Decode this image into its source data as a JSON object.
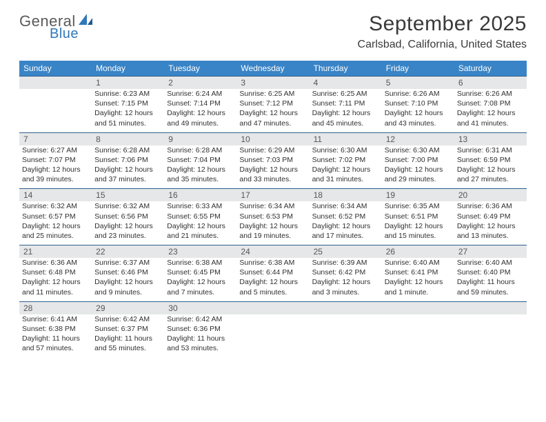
{
  "logo": {
    "word1": "General",
    "word2": "Blue"
  },
  "title": "September 2025",
  "location": "Carlsbad, California, United States",
  "colors": {
    "header_bg": "#3984c6",
    "header_text": "#ffffff",
    "daynum_bg": "#e6e7e8",
    "daynum_border": "#2f5f8f",
    "body_text": "#2f2f2f",
    "logo_gray": "#5a5a5a",
    "logo_blue": "#2f78b9"
  },
  "day_headers": [
    "Sunday",
    "Monday",
    "Tuesday",
    "Wednesday",
    "Thursday",
    "Friday",
    "Saturday"
  ],
  "weeks": [
    [
      null,
      {
        "n": "1",
        "sr": "Sunrise: 6:23 AM",
        "ss": "Sunset: 7:15 PM",
        "d1": "Daylight: 12 hours",
        "d2": "and 51 minutes."
      },
      {
        "n": "2",
        "sr": "Sunrise: 6:24 AM",
        "ss": "Sunset: 7:14 PM",
        "d1": "Daylight: 12 hours",
        "d2": "and 49 minutes."
      },
      {
        "n": "3",
        "sr": "Sunrise: 6:25 AM",
        "ss": "Sunset: 7:12 PM",
        "d1": "Daylight: 12 hours",
        "d2": "and 47 minutes."
      },
      {
        "n": "4",
        "sr": "Sunrise: 6:25 AM",
        "ss": "Sunset: 7:11 PM",
        "d1": "Daylight: 12 hours",
        "d2": "and 45 minutes."
      },
      {
        "n": "5",
        "sr": "Sunrise: 6:26 AM",
        "ss": "Sunset: 7:10 PM",
        "d1": "Daylight: 12 hours",
        "d2": "and 43 minutes."
      },
      {
        "n": "6",
        "sr": "Sunrise: 6:26 AM",
        "ss": "Sunset: 7:08 PM",
        "d1": "Daylight: 12 hours",
        "d2": "and 41 minutes."
      }
    ],
    [
      {
        "n": "7",
        "sr": "Sunrise: 6:27 AM",
        "ss": "Sunset: 7:07 PM",
        "d1": "Daylight: 12 hours",
        "d2": "and 39 minutes."
      },
      {
        "n": "8",
        "sr": "Sunrise: 6:28 AM",
        "ss": "Sunset: 7:06 PM",
        "d1": "Daylight: 12 hours",
        "d2": "and 37 minutes."
      },
      {
        "n": "9",
        "sr": "Sunrise: 6:28 AM",
        "ss": "Sunset: 7:04 PM",
        "d1": "Daylight: 12 hours",
        "d2": "and 35 minutes."
      },
      {
        "n": "10",
        "sr": "Sunrise: 6:29 AM",
        "ss": "Sunset: 7:03 PM",
        "d1": "Daylight: 12 hours",
        "d2": "and 33 minutes."
      },
      {
        "n": "11",
        "sr": "Sunrise: 6:30 AM",
        "ss": "Sunset: 7:02 PM",
        "d1": "Daylight: 12 hours",
        "d2": "and 31 minutes."
      },
      {
        "n": "12",
        "sr": "Sunrise: 6:30 AM",
        "ss": "Sunset: 7:00 PM",
        "d1": "Daylight: 12 hours",
        "d2": "and 29 minutes."
      },
      {
        "n": "13",
        "sr": "Sunrise: 6:31 AM",
        "ss": "Sunset: 6:59 PM",
        "d1": "Daylight: 12 hours",
        "d2": "and 27 minutes."
      }
    ],
    [
      {
        "n": "14",
        "sr": "Sunrise: 6:32 AM",
        "ss": "Sunset: 6:57 PM",
        "d1": "Daylight: 12 hours",
        "d2": "and 25 minutes."
      },
      {
        "n": "15",
        "sr": "Sunrise: 6:32 AM",
        "ss": "Sunset: 6:56 PM",
        "d1": "Daylight: 12 hours",
        "d2": "and 23 minutes."
      },
      {
        "n": "16",
        "sr": "Sunrise: 6:33 AM",
        "ss": "Sunset: 6:55 PM",
        "d1": "Daylight: 12 hours",
        "d2": "and 21 minutes."
      },
      {
        "n": "17",
        "sr": "Sunrise: 6:34 AM",
        "ss": "Sunset: 6:53 PM",
        "d1": "Daylight: 12 hours",
        "d2": "and 19 minutes."
      },
      {
        "n": "18",
        "sr": "Sunrise: 6:34 AM",
        "ss": "Sunset: 6:52 PM",
        "d1": "Daylight: 12 hours",
        "d2": "and 17 minutes."
      },
      {
        "n": "19",
        "sr": "Sunrise: 6:35 AM",
        "ss": "Sunset: 6:51 PM",
        "d1": "Daylight: 12 hours",
        "d2": "and 15 minutes."
      },
      {
        "n": "20",
        "sr": "Sunrise: 6:36 AM",
        "ss": "Sunset: 6:49 PM",
        "d1": "Daylight: 12 hours",
        "d2": "and 13 minutes."
      }
    ],
    [
      {
        "n": "21",
        "sr": "Sunrise: 6:36 AM",
        "ss": "Sunset: 6:48 PM",
        "d1": "Daylight: 12 hours",
        "d2": "and 11 minutes."
      },
      {
        "n": "22",
        "sr": "Sunrise: 6:37 AM",
        "ss": "Sunset: 6:46 PM",
        "d1": "Daylight: 12 hours",
        "d2": "and 9 minutes."
      },
      {
        "n": "23",
        "sr": "Sunrise: 6:38 AM",
        "ss": "Sunset: 6:45 PM",
        "d1": "Daylight: 12 hours",
        "d2": "and 7 minutes."
      },
      {
        "n": "24",
        "sr": "Sunrise: 6:38 AM",
        "ss": "Sunset: 6:44 PM",
        "d1": "Daylight: 12 hours",
        "d2": "and 5 minutes."
      },
      {
        "n": "25",
        "sr": "Sunrise: 6:39 AM",
        "ss": "Sunset: 6:42 PM",
        "d1": "Daylight: 12 hours",
        "d2": "and 3 minutes."
      },
      {
        "n": "26",
        "sr": "Sunrise: 6:40 AM",
        "ss": "Sunset: 6:41 PM",
        "d1": "Daylight: 12 hours",
        "d2": "and 1 minute."
      },
      {
        "n": "27",
        "sr": "Sunrise: 6:40 AM",
        "ss": "Sunset: 6:40 PM",
        "d1": "Daylight: 11 hours",
        "d2": "and 59 minutes."
      }
    ],
    [
      {
        "n": "28",
        "sr": "Sunrise: 6:41 AM",
        "ss": "Sunset: 6:38 PM",
        "d1": "Daylight: 11 hours",
        "d2": "and 57 minutes."
      },
      {
        "n": "29",
        "sr": "Sunrise: 6:42 AM",
        "ss": "Sunset: 6:37 PM",
        "d1": "Daylight: 11 hours",
        "d2": "and 55 minutes."
      },
      {
        "n": "30",
        "sr": "Sunrise: 6:42 AM",
        "ss": "Sunset: 6:36 PM",
        "d1": "Daylight: 11 hours",
        "d2": "and 53 minutes."
      },
      null,
      null,
      null,
      null
    ]
  ]
}
